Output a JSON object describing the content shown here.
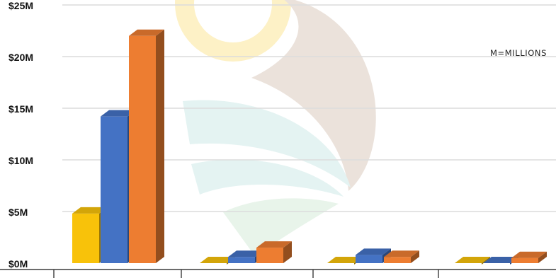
{
  "chart_data": {
    "type": "bar",
    "bar_style": "3d-clustered",
    "categories": [
      "",
      "",
      "",
      ""
    ],
    "series": [
      {
        "color": "#f8c20a",
        "values": [
          4.8,
          0.1,
          0.1,
          0.1
        ]
      },
      {
        "color": "#4472c4",
        "values": [
          14.2,
          0.6,
          0.8,
          0.1
        ]
      },
      {
        "color": "#ed7d31",
        "values": [
          22.0,
          1.5,
          0.6,
          0.5
        ]
      }
    ],
    "ylim": [
      0,
      25
    ],
    "y_ticks": [
      0,
      5,
      10,
      15,
      20,
      25
    ],
    "y_tick_labels": [
      "$0M",
      "$5M",
      "$10M",
      "$15M",
      "$20M",
      "$25M"
    ],
    "annotation": "M=MILLIONS",
    "grid": true,
    "legend": "none",
    "xlabel": "",
    "ylabel": ""
  },
  "background": {
    "watermark": "sun-and-leaf-logo",
    "colors": [
      "#fdf1c6",
      "#ebe2db",
      "#e4f3f2",
      "#e8f4ea"
    ]
  }
}
